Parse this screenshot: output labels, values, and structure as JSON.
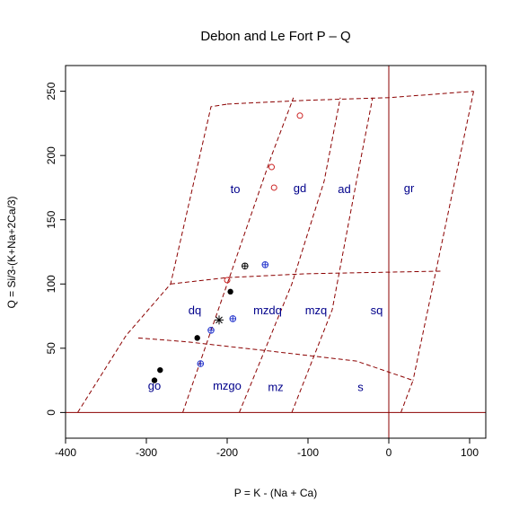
{
  "chart_data": {
    "type": "scatter",
    "title": "Debon and Le Fort P – Q",
    "xlabel": "P = K - (Na + Ca)",
    "ylabel": "Q = Si/3-(K+Na+2Ca/3)",
    "xlim": [
      -400,
      120
    ],
    "ylim": [
      -20,
      270
    ],
    "x_ticks": [
      -400,
      -300,
      -200,
      -100,
      0,
      100
    ],
    "y_ticks": [
      0,
      50,
      100,
      150,
      200,
      250
    ],
    "x_tick_labels": [
      "-400",
      "-300",
      "-200",
      "-100",
      "0",
      "100"
    ],
    "y_tick_labels": [
      "0",
      "50",
      "100",
      "150",
      "200",
      "250"
    ],
    "grid": false,
    "colors": {
      "boundaries": "#8b0000",
      "reference_lines": "#8b0000",
      "field_labels": "#00008b",
      "red_points": "#cc2222",
      "blue_points": "#2233cc",
      "black_points": "#000000"
    },
    "reference_lines": {
      "x": 0,
      "y": 0
    },
    "field_boundaries": [
      [
        [
          -385,
          0
        ],
        [
          -325,
          60
        ],
        [
          -270,
          100
        ],
        [
          -220,
          238
        ],
        [
          -200,
          240
        ]
      ],
      [
        [
          -255,
          0
        ],
        [
          -200,
          100
        ],
        [
          -145,
          200
        ],
        [
          -118,
          245
        ]
      ],
      [
        [
          -185,
          0
        ],
        [
          -120,
          100
        ],
        [
          -80,
          180
        ],
        [
          -60,
          245
        ]
      ],
      [
        [
          -120,
          0
        ],
        [
          -70,
          80
        ],
        [
          -40,
          180
        ],
        [
          -20,
          245
        ]
      ],
      [
        [
          15,
          0
        ],
        [
          30,
          25
        ]
      ],
      [
        [
          -200,
          240
        ],
        [
          -100,
          243
        ],
        [
          0,
          245
        ],
        [
          105,
          250
        ]
      ],
      [
        [
          105,
          250
        ],
        [
          30,
          25
        ]
      ],
      [
        [
          -270,
          100
        ],
        [
          -200,
          105
        ],
        [
          -100,
          108
        ],
        [
          65,
          110
        ]
      ],
      [
        [
          -310,
          58
        ],
        [
          -250,
          55
        ],
        [
          -150,
          48
        ],
        [
          -40,
          40
        ],
        [
          30,
          25
        ]
      ]
    ],
    "field_labels": [
      {
        "text": "to",
        "x": -190,
        "y": 173
      },
      {
        "text": "gd",
        "x": -110,
        "y": 174
      },
      {
        "text": "ad",
        "x": -55,
        "y": 173
      },
      {
        "text": "gr",
        "x": 25,
        "y": 174
      },
      {
        "text": "dq",
        "x": -240,
        "y": 79
      },
      {
        "text": "mzdq",
        "x": -150,
        "y": 79
      },
      {
        "text": "mzq",
        "x": -90,
        "y": 79
      },
      {
        "text": "sq",
        "x": -15,
        "y": 79
      },
      {
        "text": "go",
        "x": -290,
        "y": 20
      },
      {
        "text": "mzgo",
        "x": -200,
        "y": 20
      },
      {
        "text": "mz",
        "x": -140,
        "y": 19
      },
      {
        "text": "s",
        "x": -35,
        "y": 19
      }
    ],
    "series": [
      {
        "marker": "open-circle",
        "color": "#cc2222",
        "points": [
          [
            -110,
            231
          ],
          [
            -145,
            191
          ],
          [
            -142,
            175
          ],
          [
            -200,
            103
          ]
        ]
      },
      {
        "marker": "circle-plus",
        "color": "#2233cc",
        "points": [
          [
            -153,
            115
          ],
          [
            -193,
            73
          ],
          [
            -220,
            64
          ],
          [
            -233,
            38
          ]
        ]
      },
      {
        "marker": "circle-plus",
        "color": "#000000",
        "points": [
          [
            -178,
            114
          ]
        ]
      },
      {
        "marker": "filled-circle",
        "color": "#000000",
        "points": [
          [
            -196,
            94
          ],
          [
            -237,
            58
          ],
          [
            -283,
            33
          ],
          [
            -290,
            25
          ]
        ]
      },
      {
        "marker": "asterisk",
        "color": "#000000",
        "points": [
          [
            -210,
            72
          ]
        ]
      }
    ]
  }
}
